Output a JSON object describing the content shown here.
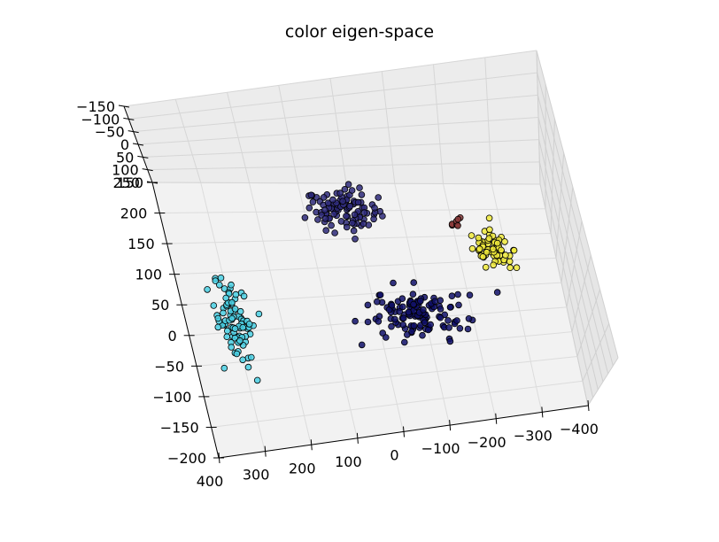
{
  "chart_data": {
    "type": "scatter",
    "projection": "3d",
    "title": "color eigen-space",
    "grid": true,
    "x_ticks": [
      "400",
      "300",
      "200",
      "100",
      "0",
      "−100",
      "−200",
      "−300",
      "−400"
    ],
    "y_ticks": [
      "250",
      "200",
      "150",
      "100",
      "50",
      "0",
      "−50",
      "−100",
      "−150",
      "−200"
    ],
    "z_ticks": [
      "−150",
      "−100",
      "−50",
      "0",
      "50",
      "100",
      "150"
    ],
    "clusters": [
      {
        "color": "#2e2a7a",
        "center": [
          20,
          200
        ],
        "spread": [
          70,
          35
        ],
        "n": 100
      },
      {
        "color": "#10106a",
        "center": [
          -90,
          10
        ],
        "spread": [
          90,
          45
        ],
        "n": 130
      },
      {
        "color": "#4ad0e4",
        "center": [
          300,
          20
        ],
        "spread": [
          35,
          55
        ],
        "n": 85
      },
      {
        "color": "#f0ea3c",
        "center": [
          -270,
          120
        ],
        "spread": [
          40,
          35
        ],
        "n": 70
      },
      {
        "color": "#8a3838",
        "center": [
          -210,
          175
        ],
        "spread": [
          18,
          12
        ],
        "n": 7
      }
    ]
  }
}
